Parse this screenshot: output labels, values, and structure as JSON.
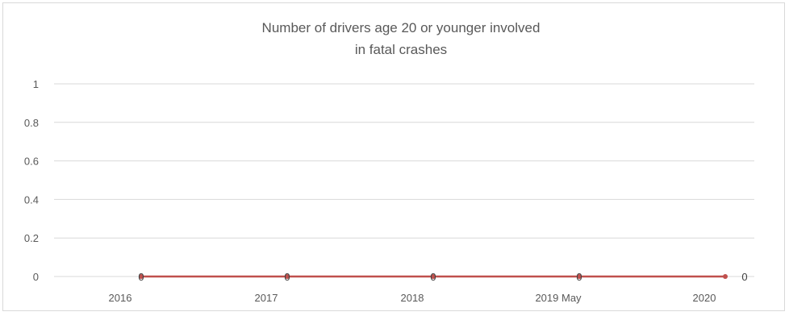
{
  "chart_data": {
    "type": "line",
    "title": [
      "Number of drivers age 20 or younger involved",
      "in fatal crashes"
    ],
    "categories": [
      "2016",
      "2017",
      "2018",
      "2019 May",
      "2020"
    ],
    "series": [
      {
        "values": [
          0,
          0,
          0,
          0,
          0
        ],
        "color": "#c0504d"
      }
    ],
    "ylim": [
      0,
      1
    ],
    "yticks": [
      "0",
      "0.2",
      "0.4",
      "0.6",
      "0.8",
      "1"
    ],
    "data_labels": [
      "0",
      "0",
      "0",
      "0",
      "0"
    ],
    "grid": true,
    "legend": "none"
  }
}
